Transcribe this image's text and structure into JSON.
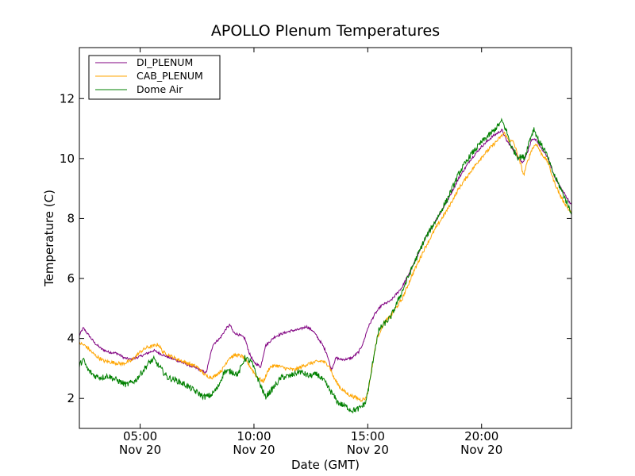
{
  "chart_data": {
    "type": "line",
    "title": "APOLLO Plenum Temperatures",
    "xlabel": "Date (GMT)",
    "ylabel": "Temperature (C)",
    "xlim": [
      2.33,
      23.95
    ],
    "ylim": [
      1.0,
      13.7
    ],
    "x_unit": "hours since 00:00 Nov 20 (GMT)",
    "x_ticks": [
      {
        "value": 5,
        "label": "05:00",
        "sublabel": "Nov 20"
      },
      {
        "value": 10,
        "label": "10:00",
        "sublabel": "Nov 20"
      },
      {
        "value": 15,
        "label": "15:00",
        "sublabel": "Nov 20"
      },
      {
        "value": 20,
        "label": "20:00",
        "sublabel": "Nov 20"
      }
    ],
    "y_ticks": [
      {
        "value": 2,
        "label": "2"
      },
      {
        "value": 4,
        "label": "4"
      },
      {
        "value": 6,
        "label": "6"
      },
      {
        "value": 8,
        "label": "8"
      },
      {
        "value": 10,
        "label": "10"
      },
      {
        "value": 12,
        "label": "12"
      }
    ],
    "grid": false,
    "legend_position": "top-left",
    "series": [
      {
        "name": "DI_PLENUM",
        "color": "#800080",
        "noise": 0.04,
        "x": [
          2.33,
          2.5,
          2.7,
          3.0,
          3.3,
          3.6,
          4.0,
          4.3,
          4.6,
          5.0,
          5.3,
          5.6,
          6.0,
          6.5,
          7.0,
          7.5,
          7.9,
          8.2,
          8.5,
          8.8,
          8.95,
          9.1,
          9.4,
          9.6,
          9.8,
          10.0,
          10.3,
          10.5,
          10.9,
          11.2,
          11.6,
          12.0,
          12.3,
          12.6,
          13.0,
          13.2,
          13.4,
          13.6,
          13.8,
          14.0,
          14.3,
          14.6,
          14.8,
          15.0,
          15.3,
          15.6,
          16.0,
          16.5,
          17.0,
          17.5,
          18.0,
          18.5,
          19.0,
          19.5,
          20.0,
          20.5,
          20.9,
          21.1,
          21.3,
          21.6,
          21.8,
          22.0,
          22.2,
          22.4,
          22.6,
          22.9,
          23.2,
          23.5,
          23.95
        ],
        "y": [
          4.1,
          4.35,
          4.15,
          3.85,
          3.65,
          3.55,
          3.5,
          3.35,
          3.3,
          3.4,
          3.5,
          3.6,
          3.45,
          3.3,
          3.15,
          3.0,
          2.85,
          3.8,
          4.0,
          4.35,
          4.45,
          4.2,
          4.1,
          4.0,
          3.5,
          3.2,
          3.05,
          3.75,
          4.05,
          4.15,
          4.25,
          4.3,
          4.4,
          4.25,
          3.8,
          3.5,
          2.95,
          3.35,
          3.3,
          3.3,
          3.35,
          3.55,
          3.85,
          4.35,
          4.8,
          5.1,
          5.25,
          5.7,
          6.45,
          7.3,
          7.95,
          8.6,
          9.35,
          9.95,
          10.4,
          10.75,
          10.95,
          10.6,
          10.4,
          10.05,
          9.85,
          10.2,
          10.6,
          10.65,
          10.35,
          10.05,
          9.4,
          9.0,
          8.45
        ]
      },
      {
        "name": "CAB_PLENUM",
        "color": "#ffa500",
        "noise": 0.06,
        "x": [
          2.33,
          2.6,
          3.0,
          3.4,
          3.8,
          4.2,
          4.6,
          5.0,
          5.3,
          5.6,
          5.8,
          6.0,
          6.5,
          7.0,
          7.5,
          7.9,
          8.2,
          8.6,
          8.9,
          9.2,
          9.5,
          9.8,
          10.1,
          10.4,
          10.7,
          11.0,
          11.4,
          11.8,
          12.2,
          12.6,
          13.0,
          13.3,
          13.5,
          13.8,
          14.1,
          14.4,
          14.7,
          14.9,
          15.0,
          15.2,
          15.4,
          15.7,
          16.0,
          16.5,
          17.0,
          17.5,
          18.0,
          18.5,
          19.0,
          19.5,
          20.0,
          20.5,
          21.0,
          21.2,
          21.4,
          21.6,
          21.85,
          22.0,
          22.2,
          22.4,
          22.6,
          22.9,
          23.2,
          23.5,
          23.95
        ],
        "y": [
          3.85,
          3.75,
          3.45,
          3.25,
          3.2,
          3.15,
          3.25,
          3.55,
          3.7,
          3.75,
          3.8,
          3.55,
          3.35,
          3.2,
          3.05,
          2.75,
          2.7,
          2.95,
          3.35,
          3.45,
          3.4,
          3.1,
          2.75,
          2.55,
          3.05,
          3.1,
          3.0,
          2.95,
          3.1,
          3.2,
          3.25,
          3.1,
          2.7,
          2.35,
          2.15,
          2.05,
          1.95,
          2.0,
          2.2,
          3.1,
          4.0,
          4.5,
          4.75,
          5.3,
          6.2,
          7.0,
          7.7,
          8.3,
          9.0,
          9.55,
          10.05,
          10.45,
          10.85,
          10.6,
          10.55,
          10.1,
          9.45,
          9.85,
          10.3,
          10.5,
          10.2,
          9.9,
          9.2,
          8.7,
          8.15
        ]
      },
      {
        "name": "Dome Air",
        "color": "#008000",
        "noise": 0.1,
        "x": [
          2.33,
          2.5,
          2.7,
          3.0,
          3.3,
          3.6,
          4.0,
          4.4,
          4.8,
          5.1,
          5.4,
          5.6,
          5.9,
          6.2,
          6.6,
          7.0,
          7.4,
          7.8,
          8.1,
          8.4,
          8.7,
          9.0,
          9.3,
          9.6,
          9.9,
          10.2,
          10.5,
          10.8,
          11.2,
          11.6,
          12.0,
          12.4,
          12.8,
          13.1,
          13.4,
          13.7,
          14.0,
          14.3,
          14.6,
          14.9,
          15.1,
          15.3,
          15.5,
          15.8,
          16.0,
          16.5,
          17.0,
          17.5,
          18.0,
          18.5,
          19.0,
          19.5,
          20.0,
          20.5,
          20.9,
          21.1,
          21.3,
          21.6,
          21.9,
          22.1,
          22.3,
          22.5,
          22.8,
          23.1,
          23.5,
          23.95
        ],
        "y": [
          3.1,
          3.3,
          2.95,
          2.75,
          2.7,
          2.75,
          2.6,
          2.45,
          2.6,
          2.9,
          3.2,
          3.3,
          3.0,
          2.7,
          2.6,
          2.45,
          2.25,
          2.05,
          2.1,
          2.35,
          2.9,
          2.9,
          2.8,
          3.35,
          3.2,
          2.6,
          2.05,
          2.3,
          2.7,
          2.75,
          2.9,
          2.75,
          2.8,
          2.55,
          2.2,
          1.85,
          1.75,
          1.6,
          1.65,
          1.85,
          2.6,
          3.6,
          4.3,
          4.55,
          4.7,
          5.55,
          6.45,
          7.3,
          7.95,
          8.65,
          9.5,
          10.1,
          10.55,
          10.9,
          11.25,
          10.9,
          10.4,
          10.05,
          10.05,
          10.6,
          11.0,
          10.6,
          10.25,
          9.6,
          8.95,
          8.2
        ]
      }
    ]
  }
}
